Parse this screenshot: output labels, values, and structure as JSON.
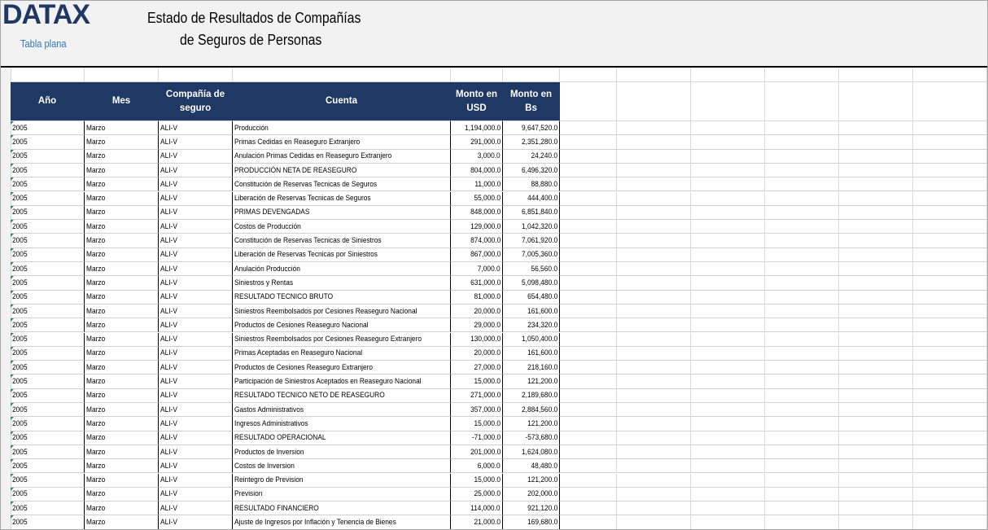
{
  "header": {
    "logo": "DATAX",
    "subtitle": "Tabla plana",
    "title_lines": [
      "Estado de Resultados de Compañías",
      "de Seguros de Personas"
    ]
  },
  "table": {
    "columns": [
      "Año",
      "Mes",
      "Compañía de seguro",
      "Cuenta",
      "Monto en USD",
      "Monto en Bs"
    ],
    "rows": [
      [
        "2005",
        "Marzo",
        "ALI-V",
        "Producción",
        "1,194,000.0",
        "9,647,520.0"
      ],
      [
        "2005",
        "Marzo",
        "ALI-V",
        "Primas Cedidas en Reaseguro Extranjero",
        "291,000.0",
        "2,351,280.0"
      ],
      [
        "2005",
        "Marzo",
        "ALI-V",
        "Anulación Primas Cedidas en Reaseguro Extranjero",
        "3,000.0",
        "24,240.0"
      ],
      [
        "2005",
        "Marzo",
        "ALI-V",
        "PRODUCCIÓN NETA DE REASEGURO",
        "804,000.0",
        "6,496,320.0"
      ],
      [
        "2005",
        "Marzo",
        "ALI-V",
        "Constitución de Reservas Tecnicas de Seguros",
        "11,000.0",
        "88,880.0"
      ],
      [
        "2005",
        "Marzo",
        "ALI-V",
        "Liberación de Reservas Tecnicas de Seguros",
        "55,000.0",
        "444,400.0"
      ],
      [
        "2005",
        "Marzo",
        "ALI-V",
        "PRIMAS DEVENGADAS",
        "848,000.0",
        "6,851,840.0"
      ],
      [
        "2005",
        "Marzo",
        "ALI-V",
        "Costos de Producción",
        "129,000.0",
        "1,042,320.0"
      ],
      [
        "2005",
        "Marzo",
        "ALI-V",
        "Constitución de Reservas Tecnicas de Siniestros",
        "874,000.0",
        "7,061,920.0"
      ],
      [
        "2005",
        "Marzo",
        "ALI-V",
        "Liberación de Reservas Tecnicas por Siniestros",
        "867,000.0",
        "7,005,360.0"
      ],
      [
        "2005",
        "Marzo",
        "ALI-V",
        "Anulación Producción",
        "7,000.0",
        "56,560.0"
      ],
      [
        "2005",
        "Marzo",
        "ALI-V",
        "Siniestros y Rentas",
        "631,000.0",
        "5,098,480.0"
      ],
      [
        "2005",
        "Marzo",
        "ALI-V",
        "RESULTADO TECNICO BRUTO",
        "81,000.0",
        "654,480.0"
      ],
      [
        "2005",
        "Marzo",
        "ALI-V",
        "Siniestros Reembolsados por Cesiones Reaseguro Nacional",
        "20,000.0",
        "161,600.0"
      ],
      [
        "2005",
        "Marzo",
        "ALI-V",
        "Productos de Cesiones Reaseguro Nacional",
        "29,000.0",
        "234,320.0"
      ],
      [
        "2005",
        "Marzo",
        "ALI-V",
        "Siniestros Reembolsados por Cesiones Reaseguro Extranjero",
        "130,000.0",
        "1,050,400.0"
      ],
      [
        "2005",
        "Marzo",
        "ALI-V",
        "Primas Aceptadas en Reaseguro Nacional",
        "20,000.0",
        "161,600.0"
      ],
      [
        "2005",
        "Marzo",
        "ALI-V",
        "Productos de Cesiones Reaseguro Extranjero",
        "27,000.0",
        "218,160.0"
      ],
      [
        "2005",
        "Marzo",
        "ALI-V",
        "Participación de Siniestros Aceptados en Reaseguro Nacional",
        "15,000.0",
        "121,200.0"
      ],
      [
        "2005",
        "Marzo",
        "ALI-V",
        "RESULTADO TECNICO NETO DE REASEGURO",
        "271,000.0",
        "2,189,680.0"
      ],
      [
        "2005",
        "Marzo",
        "ALI-V",
        "Gastos Administrativos",
        "357,000.0",
        "2,884,560.0"
      ],
      [
        "2005",
        "Marzo",
        "ALI-V",
        "Ingresos Administrativos",
        "15,000.0",
        "121,200.0"
      ],
      [
        "2005",
        "Marzo",
        "ALI-V",
        "RESULTADO OPERACIONAL",
        "-71,000.0",
        "-573,680.0"
      ],
      [
        "2005",
        "Marzo",
        "ALI-V",
        "Productos de Inversion",
        "201,000.0",
        "1,624,080.0"
      ],
      [
        "2005",
        "Marzo",
        "ALI-V",
        "Costos de Inversion",
        "6,000.0",
        "48,480.0"
      ],
      [
        "2005",
        "Marzo",
        "ALI-V",
        "Reintegro de Prevision",
        "15,000.0",
        "121,200.0"
      ],
      [
        "2005",
        "Marzo",
        "ALI-V",
        "Prevision",
        "25,000.0",
        "202,000.0"
      ],
      [
        "2005",
        "Marzo",
        "ALI-V",
        "RESULTADO FINANCIERO",
        "114,000.0",
        "921,120.0"
      ],
      [
        "2005",
        "Marzo",
        "ALI-V",
        "Ajuste de Ingresos por Inflación y Tenencia de Bienes",
        "21,000.0",
        "169,680.0"
      ]
    ]
  }
}
